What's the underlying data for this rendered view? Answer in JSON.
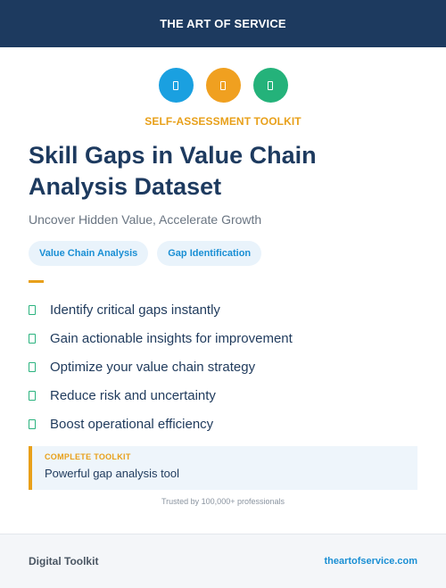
{
  "header": {
    "brand": "THE ART OF SERVICE"
  },
  "icons": [
    {
      "name": "blue-badge-icon",
      "color": "#1aa0e0"
    },
    {
      "name": "orange-badge-icon",
      "color": "#f0a020"
    },
    {
      "name": "green-badge-icon",
      "color": "#24b27a"
    }
  ],
  "kicker": "SELF-ASSESSMENT TOOLKIT",
  "title": "Skill Gaps in Value Chain Analysis Dataset",
  "subtitle": "Uncover Hidden Value, Accelerate Growth",
  "chips": [
    "Value Chain Analysis",
    "Gap Identification"
  ],
  "features": [
    "Identify critical gaps instantly",
    "Gain actionable insights for improvement",
    "Optimize your value chain strategy",
    "Reduce risk and uncertainty",
    "Boost operational efficiency"
  ],
  "callout": {
    "label": "COMPLETE TOOLKIT",
    "text": "Powerful gap analysis tool"
  },
  "trusted": "Trusted by 100,000+ professionals",
  "footer": {
    "left": "Digital Toolkit",
    "right": "theartofservice.com"
  },
  "colors": {
    "navy": "#1d3a5f",
    "accent_orange": "#e8a01a",
    "accent_blue": "#1a8fd4",
    "accent_green": "#2bb37f"
  }
}
